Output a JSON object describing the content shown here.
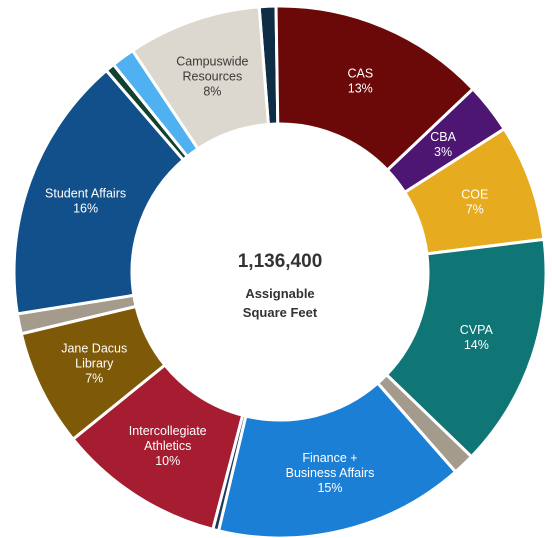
{
  "chart_data": {
    "type": "pie",
    "variant": "donut",
    "center_total": "1,136,400",
    "center_subtitle": [
      "Assignable",
      "Square Feet"
    ],
    "slices": [
      {
        "key": "s-topsmall",
        "lines": [],
        "value": 1,
        "color": "#0f2d44"
      },
      {
        "key": "cas",
        "lines": [
          "CAS",
          "13%"
        ],
        "value": 13,
        "color": "#6b0808"
      },
      {
        "key": "cba",
        "lines": [
          "CBA",
          "3%"
        ],
        "value": 3,
        "color": "#4d1673"
      },
      {
        "key": "coe",
        "lines": [
          "COE",
          "7%"
        ],
        "value": 7,
        "color": "#e6ab1e"
      },
      {
        "key": "cvpa",
        "lines": [
          "CVPA",
          "14%"
        ],
        "value": 14,
        "color": "#0f7575"
      },
      {
        "key": "s-tan1",
        "lines": [],
        "value": 1.3,
        "color": "#a49b8d"
      },
      {
        "key": "finance",
        "lines": [
          "Finance +",
          "Business Affairs",
          "15%"
        ],
        "value": 15,
        "color": "#1c7fd6"
      },
      {
        "key": "s-thin1",
        "lines": [],
        "value": 0.35,
        "color": "#1d3a5a"
      },
      {
        "key": "athletics",
        "lines": [
          "Intercollegiate",
          "Athletics",
          "10%"
        ],
        "value": 10,
        "color": "#a61c30"
      },
      {
        "key": "library",
        "lines": [
          "Jane Dacus",
          "Library",
          "7%"
        ],
        "value": 7,
        "color": "#7e5908"
      },
      {
        "key": "s-tan2",
        "lines": [],
        "value": 1.2,
        "color": "#a49b8d"
      },
      {
        "key": "student",
        "lines": [
          "Student Affairs",
          "16%"
        ],
        "value": 16,
        "color": "#11508a"
      },
      {
        "key": "s-darkgreen",
        "lines": [],
        "value": 0.55,
        "color": "#13412f"
      },
      {
        "key": "s-lightblue",
        "lines": [],
        "value": 1.4,
        "color": "#4fb0f2"
      },
      {
        "key": "campuswide",
        "lines": [
          "Campuswide",
          "Resources",
          "8%"
        ],
        "value": 8,
        "color": "#dcd8cf",
        "label_dark": true
      }
    ]
  }
}
